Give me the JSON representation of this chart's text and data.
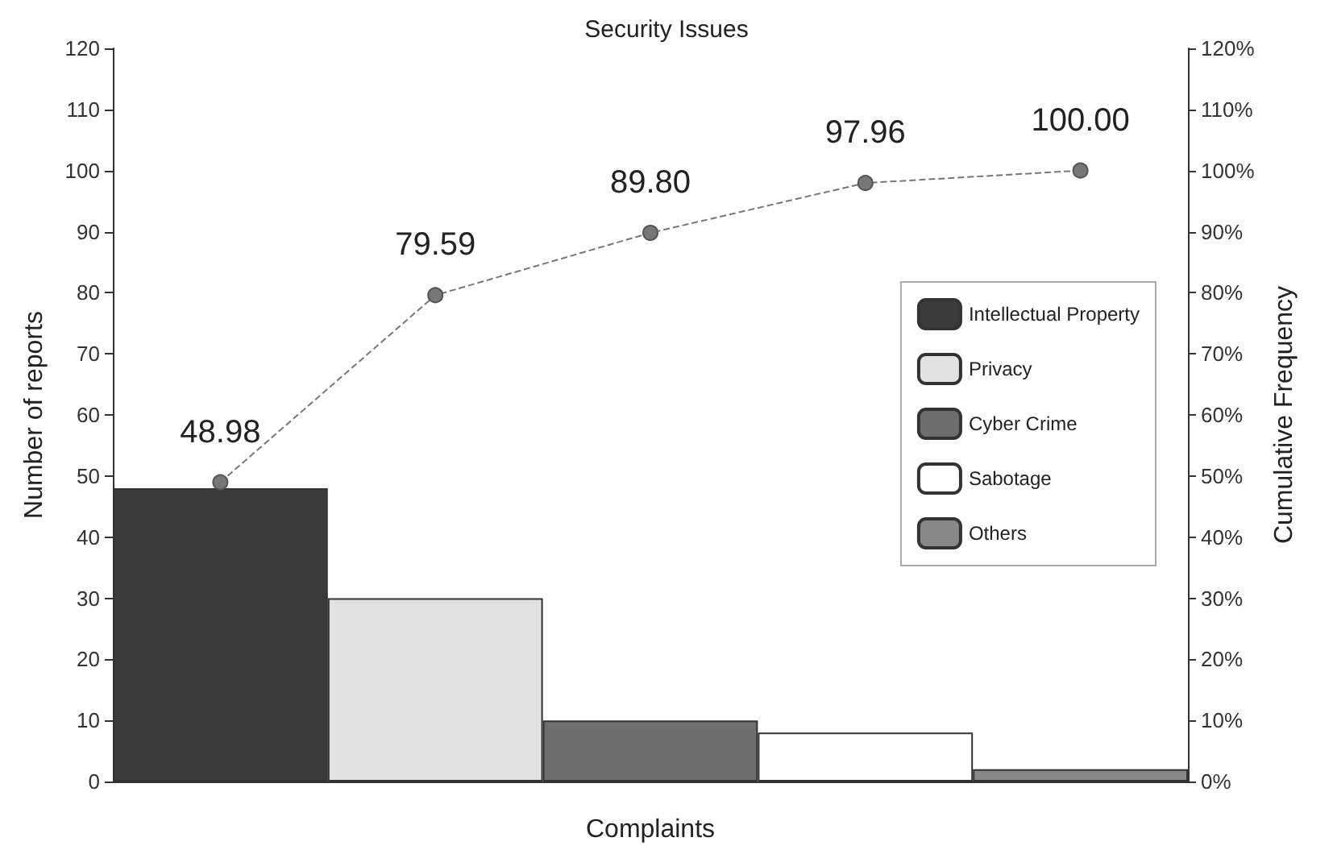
{
  "chart_data": {
    "type": "bar",
    "title": "Security Issues",
    "xlabel": "Complaints",
    "ylabel": "Number of reports",
    "y2label": "Cumulative Frequency",
    "categories": [
      null,
      null,
      null,
      null,
      null
    ],
    "stacked": true,
    "series": [
      {
        "name": "Intellectual Property",
        "color": "#3a3a3a",
        "values": [
          48,
          null,
          null,
          null,
          null
        ]
      },
      {
        "name": "Privacy",
        "color": "#e2e2e2",
        "values": [
          null,
          30,
          null,
          null,
          null
        ]
      },
      {
        "name": "Cyber Crime",
        "color": "#6e6e6e",
        "values": [
          null,
          null,
          10,
          null,
          null
        ]
      },
      {
        "name": "Sabotage",
        "color": "#ffffff",
        "values": [
          null,
          null,
          null,
          8,
          null
        ]
      },
      {
        "name": "Others",
        "color": "#888888",
        "values": [
          null,
          null,
          null,
          null,
          2
        ]
      },
      {
        "type": "line",
        "axis": "y2",
        "color": "#777777",
        "marker": "circle",
        "line_style": "dashed",
        "values": [
          48.98,
          79.59,
          89.8,
          97.96,
          100.0
        ],
        "value_labels": [
          "48.98",
          "79.59",
          "89.80",
          "97.96",
          "100.00"
        ]
      }
    ],
    "ylim": [
      0,
      120
    ],
    "yticks": [
      0,
      10,
      20,
      30,
      40,
      50,
      60,
      70,
      80,
      90,
      100,
      110,
      120
    ],
    "y2lim": [
      0,
      120
    ],
    "y2ticks": [
      {
        "value": 0,
        "label": "0%"
      },
      {
        "value": 10,
        "label": "10%"
      },
      {
        "value": 20,
        "label": "20%"
      },
      {
        "value": 30,
        "label": "30%"
      },
      {
        "value": 40,
        "label": "40%"
      },
      {
        "value": 50,
        "label": "50%"
      },
      {
        "value": 60,
        "label": "60%"
      },
      {
        "value": 70,
        "label": "70%"
      },
      {
        "value": 80,
        "label": "80%"
      },
      {
        "value": 90,
        "label": "90%"
      },
      {
        "value": 100,
        "label": "100%"
      },
      {
        "value": 110,
        "label": "110%"
      },
      {
        "value": 120,
        "label": "120%"
      }
    ],
    "grid": false,
    "legend": "right"
  }
}
